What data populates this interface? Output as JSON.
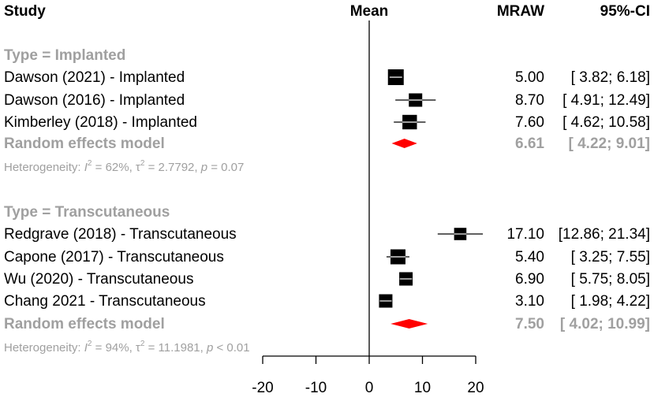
{
  "header": {
    "study": "Study",
    "mean": "Mean",
    "mraw": "MRAW",
    "ci": "95%-CI"
  },
  "colors": {
    "text": "#000000",
    "subgroup_gray": "#a0a0a0",
    "diamond_red": "#ff0000",
    "square": "#000000"
  },
  "chart_data": {
    "type": "forest",
    "xlim": [
      -20,
      20
    ],
    "xticks": [
      -20,
      -10,
      0,
      10,
      20
    ],
    "tick_labels": [
      "-20",
      "-10",
      "0",
      "10",
      "20"
    ],
    "reference_line": 0,
    "subgroups": [
      {
        "name": "Type = Implanted",
        "studies": [
          {
            "label": "Dawson (2021) - Implanted",
            "mean": 5.0,
            "lower": 3.82,
            "upper": 6.18,
            "mraw_text": "5.00",
            "ci_text": "[ 3.82;  6.18]",
            "weight": 1.0
          },
          {
            "label": "Dawson (2016) - Implanted",
            "mean": 8.7,
            "lower": 4.91,
            "upper": 12.49,
            "mraw_text": "8.70",
            "ci_text": "[ 4.91; 12.49]",
            "weight": 0.85
          },
          {
            "label": "Kimberley (2018) - Implanted",
            "mean": 7.6,
            "lower": 4.62,
            "upper": 10.58,
            "mraw_text": "7.60",
            "ci_text": "[ 4.62; 10.58]",
            "weight": 0.92
          }
        ],
        "random": {
          "label": "Random effects model",
          "mean": 6.61,
          "lower": 4.22,
          "upper": 9.01,
          "mraw_text": "6.61",
          "ci_text": "[ 4.22;  9.01]"
        },
        "heterogeneity": {
          "prefix": "Heterogeneity: ",
          "i_sym": "I",
          "sup": "2",
          "rest_a": " = 62%, τ",
          "sup2": "2",
          "rest_b": " = 2.7792, ",
          "p_sym": "p",
          "rest_c": " = 0.07"
        }
      },
      {
        "name": "Type = Transcutaneous",
        "studies": [
          {
            "label": "Redgrave (2018) - Transcutaneous",
            "mean": 17.1,
            "lower": 12.86,
            "upper": 21.34,
            "mraw_text": "17.10",
            "ci_text": "[12.86; 21.34]",
            "weight": 0.78
          },
          {
            "label": "Capone (2017) - Transcutaneous",
            "mean": 5.4,
            "lower": 3.25,
            "upper": 7.55,
            "mraw_text": "5.40",
            "ci_text": "[ 3.25;  7.55]",
            "weight": 0.95
          },
          {
            "label": "Wu (2020) - Transcutaneous",
            "mean": 6.9,
            "lower": 5.75,
            "upper": 8.05,
            "mraw_text": "6.90",
            "ci_text": "[ 5.75;  8.05]",
            "weight": 0.85
          },
          {
            "label": "Chang 2021  - Transcutaneous",
            "mean": 3.1,
            "lower": 1.98,
            "upper": 4.22,
            "mraw_text": "3.10",
            "ci_text": "[ 1.98;  4.22]",
            "weight": 0.85
          }
        ],
        "random": {
          "label": "Random effects model",
          "mean": 7.5,
          "lower": 4.02,
          "upper": 10.99,
          "mraw_text": "7.50",
          "ci_text": "[ 4.02; 10.99]"
        },
        "heterogeneity": {
          "prefix": "Heterogeneity: ",
          "i_sym": "I",
          "sup": "2",
          "rest_a": " = 94%, τ",
          "sup2": "2",
          "rest_b": " = 11.1981, ",
          "p_sym": "p",
          "rest_c": " < 0.01"
        }
      }
    ]
  }
}
